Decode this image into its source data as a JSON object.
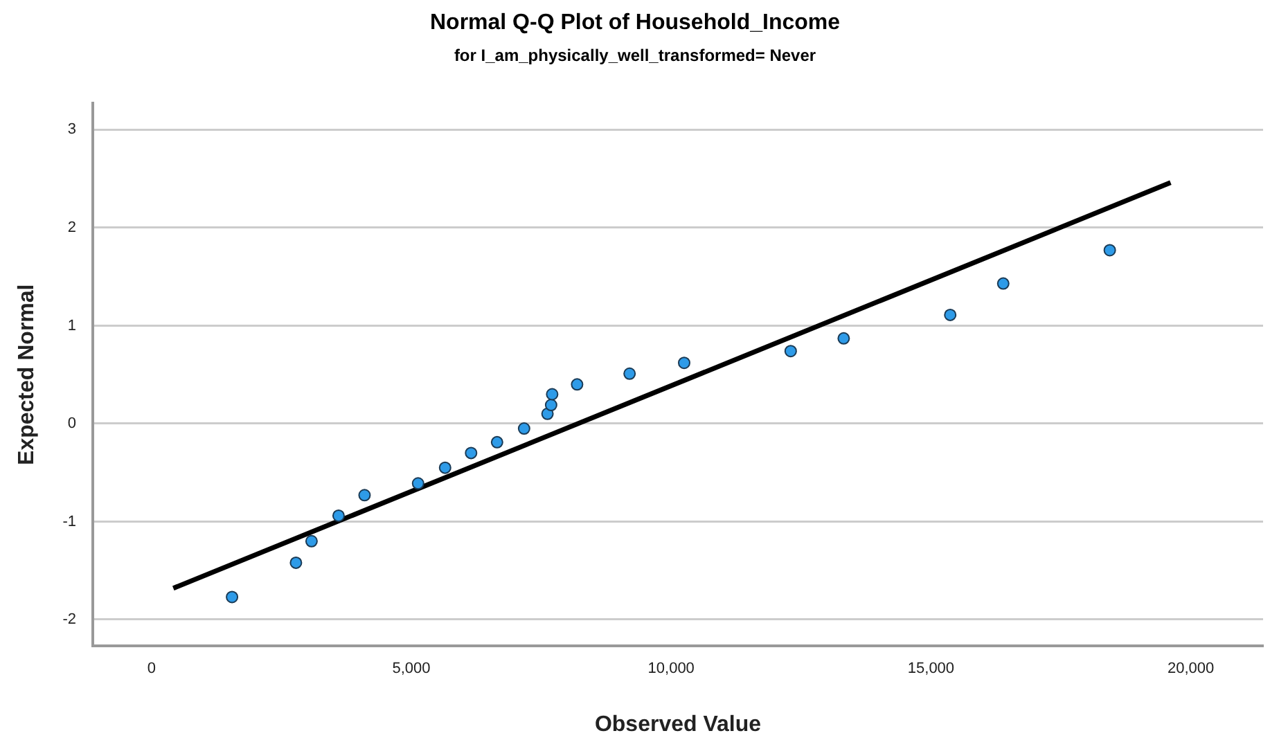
{
  "chart_data": {
    "type": "scatter",
    "title": "Normal Q-Q Plot of Household_Income",
    "subtitle": "for I_am_physically_well_transformed= Never",
    "xlabel": "Observed Value",
    "ylabel": "Expected Normal",
    "series": [
      {
        "marker": "circle",
        "color": "#2e9be8",
        "x": [
          1550,
          2780,
          3080,
          3600,
          4100,
          5130,
          5650,
          6150,
          6650,
          7170,
          7620,
          7690,
          7710,
          8190,
          9200,
          10250,
          12300,
          13320,
          15370,
          16390,
          18440
        ],
        "values": [
          -1.77,
          -1.42,
          -1.2,
          -0.94,
          -0.73,
          -0.61,
          -0.45,
          -0.3,
          -0.19,
          -0.05,
          0.1,
          0.19,
          0.3,
          0.4,
          0.51,
          0.62,
          0.74,
          0.87,
          1.11,
          1.43,
          1.77
        ]
      },
      {
        "type": "line",
        "marker": "none",
        "color": "#000000",
        "x": [
          420,
          19610
        ],
        "values": [
          -1.68,
          2.46
        ]
      }
    ],
    "xlim": [
      -1130,
      21390
    ],
    "ylim": [
      -2.27,
      3.27
    ],
    "xticks": [
      {
        "value": 0,
        "label": "0"
      },
      {
        "value": 5000,
        "label": "5,000"
      },
      {
        "value": 10000,
        "label": "10,000"
      },
      {
        "value": 15000,
        "label": "15,000"
      },
      {
        "value": 20000,
        "label": "20,000"
      }
    ],
    "yticks": [
      -2,
      -1,
      0,
      1,
      2,
      3
    ],
    "grid": "y",
    "legend": false
  }
}
